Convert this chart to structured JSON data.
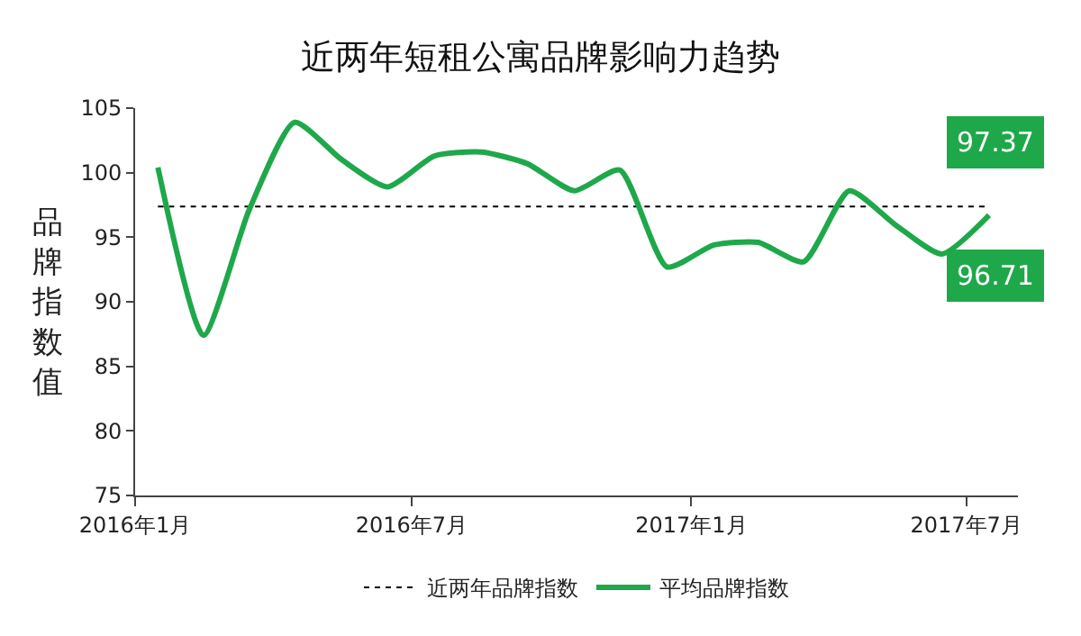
{
  "chart_data": {
    "type": "line",
    "title": "近两年短租公寓品牌影响力趋势",
    "ylabel": "品牌指数值",
    "x": [
      "2016-01-16",
      "2016-02-15",
      "2016-03-16",
      "2016-04-15",
      "2016-05-16",
      "2016-06-15",
      "2016-07-16",
      "2016-08-16",
      "2016-09-15",
      "2016-10-16",
      "2016-11-15",
      "2016-12-16",
      "2017-01-16",
      "2017-02-14",
      "2017-03-16",
      "2017-04-15",
      "2017-05-16",
      "2017-06-15",
      "2017-07-16"
    ],
    "series": [
      {
        "name": "近两年品牌指数",
        "color": "#000000",
        "line_style": "dotted",
        "values": [
          97.37,
          97.37,
          97.37,
          97.37,
          97.37,
          97.37,
          97.37,
          97.37,
          97.37,
          97.37,
          97.37,
          97.37,
          97.37,
          97.37,
          97.37,
          97.37,
          97.37,
          97.37,
          97.37
        ],
        "value_labels": [
          null,
          null,
          null,
          null,
          null,
          null,
          null,
          null,
          null,
          null,
          null,
          null,
          null,
          null,
          null,
          null,
          null,
          null,
          "97.37"
        ]
      },
      {
        "name": "平均品牌指数",
        "color": "#1fa84a",
        "line_style": "solid",
        "values": [
          100.4,
          87.4,
          97.1,
          103.9,
          101.0,
          98.9,
          101.3,
          101.6,
          100.7,
          98.6,
          100.2,
          92.7,
          94.4,
          94.6,
          93.1,
          98.6,
          95.9,
          93.7,
          96.71
        ],
        "value_labels": [
          null,
          null,
          null,
          null,
          null,
          null,
          null,
          null,
          null,
          null,
          null,
          null,
          null,
          null,
          null,
          null,
          null,
          null,
          "96.71"
        ]
      }
    ],
    "xlim": [
      "2016-01-01",
      "2017-08-04"
    ],
    "xticks": [
      {
        "value": "2016-01-01",
        "label": "2016年1月"
      },
      {
        "value": "2016-07-01",
        "label": "2016年7月"
      },
      {
        "value": "2017-01-01",
        "label": "2017年1月"
      },
      {
        "value": "2017-07-01",
        "label": "2017年7月"
      }
    ],
    "ylim": [
      75,
      105
    ],
    "yticks": [
      75,
      80,
      85,
      90,
      95,
      100,
      105
    ],
    "grid": false,
    "legend": "bottom",
    "marker": "none"
  }
}
